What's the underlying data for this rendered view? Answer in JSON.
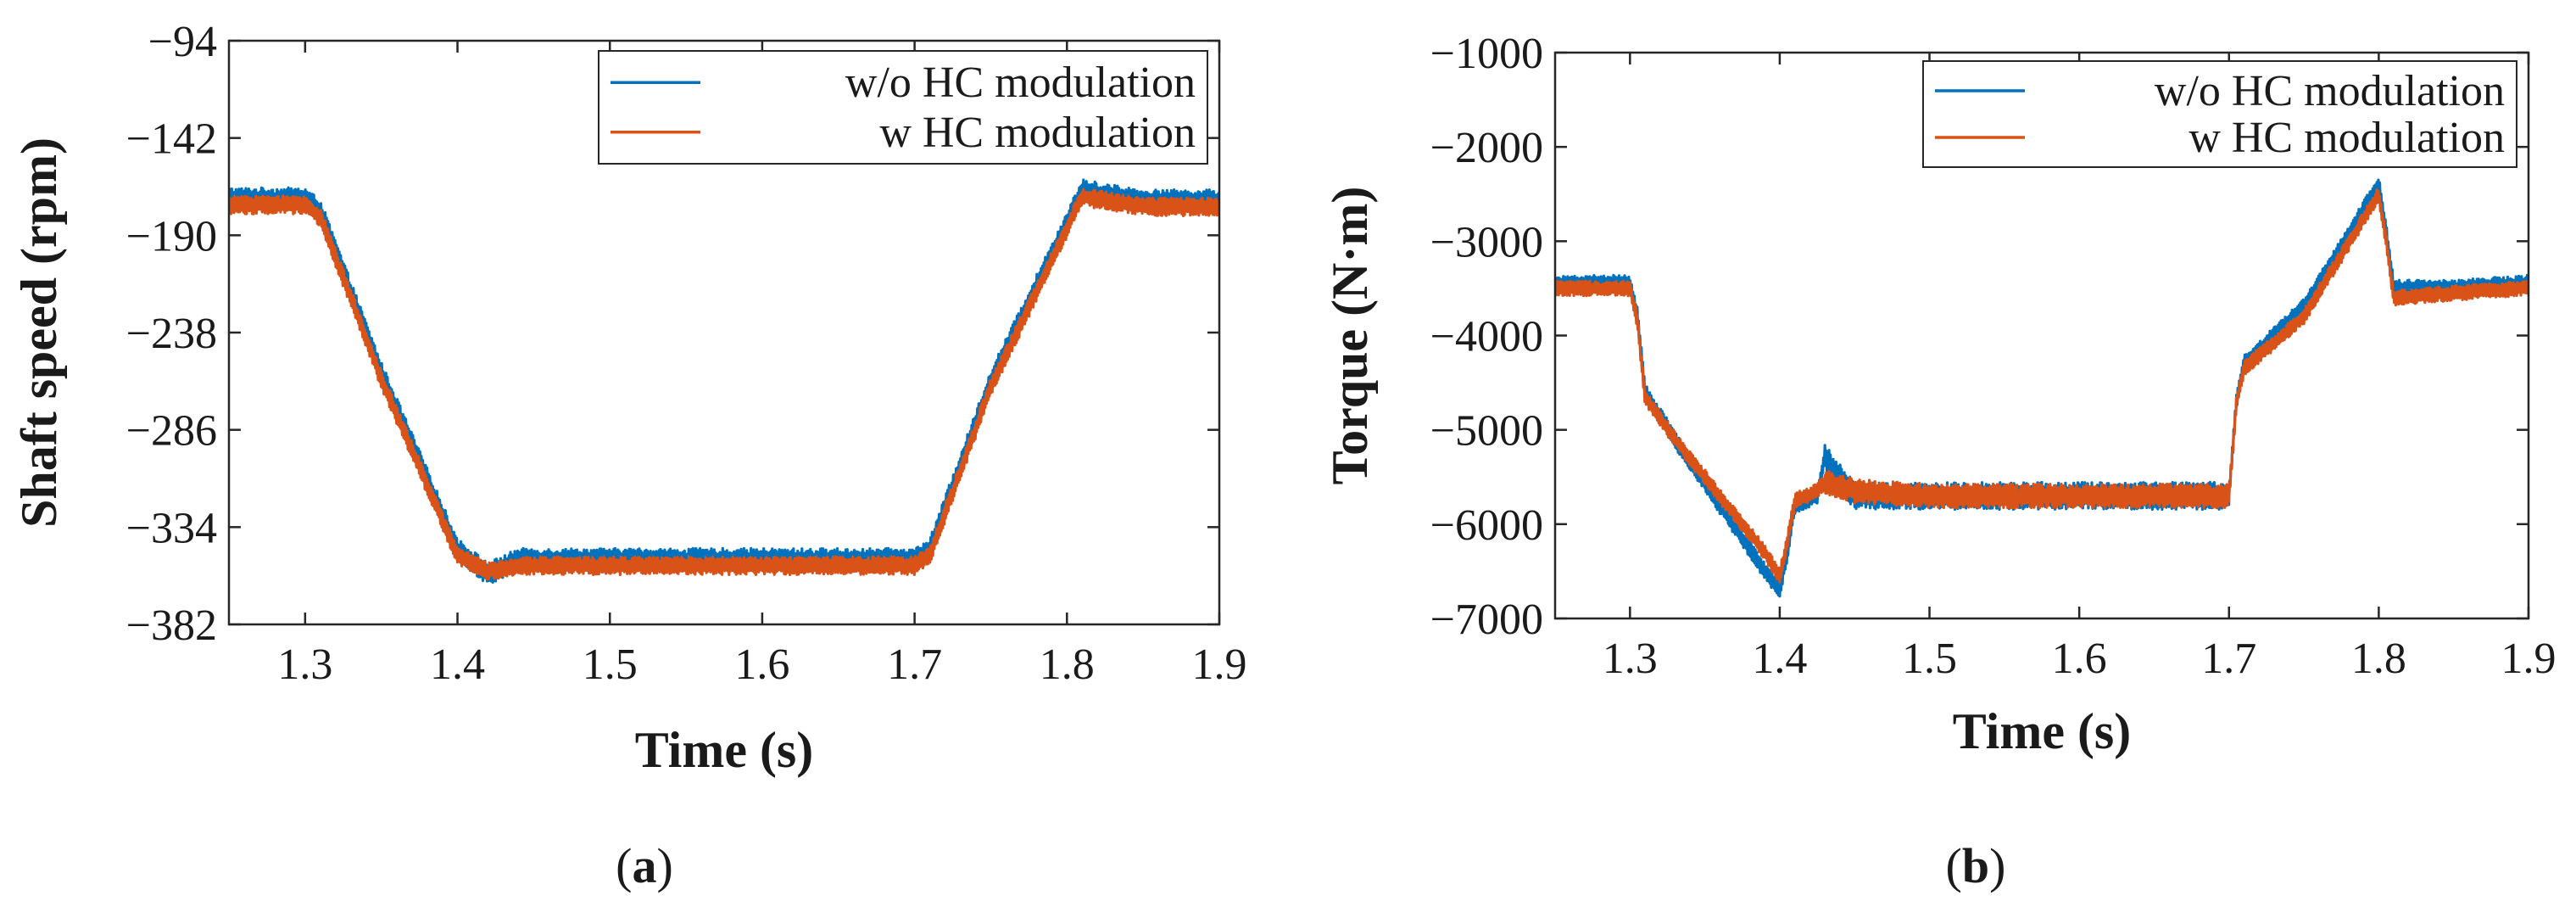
{
  "colors": {
    "series_a": "#0072BD",
    "series_b": "#D95319",
    "axis": "#262626"
  },
  "chart_data": [
    {
      "type": "line",
      "caption": "a",
      "xlabel": "Time (s)",
      "ylabel": "Shaft speed (rpm)",
      "xlim": [
        1.25,
        1.9
      ],
      "ylim": [
        -382,
        -94
      ],
      "xticks": [
        1.3,
        1.4,
        1.5,
        1.6,
        1.7,
        1.8,
        1.9
      ],
      "xtick_labels": [
        "1.3",
        "1.4",
        "1.5",
        "1.6",
        "1.7",
        "1.8",
        "1.9"
      ],
      "yticks": [
        -94,
        -142,
        -190,
        -238,
        -286,
        -334,
        -382
      ],
      "ytick_labels": [
        "−94",
        "−142",
        "−190",
        "−238",
        "−286",
        "−334",
        "−382"
      ],
      "legend": {
        "placement": "top-right",
        "entries": [
          "w/o HC modulation",
          "w HC modulation"
        ]
      },
      "series": [
        {
          "name": "w/o HC modulation",
          "x": [
            1.25,
            1.3,
            1.31,
            1.35,
            1.4,
            1.42,
            1.44,
            1.5,
            1.6,
            1.7,
            1.71,
            1.75,
            1.81,
            1.85,
            1.9
          ],
          "values": [
            -172,
            -172,
            -178,
            -258,
            -345,
            -357,
            -350,
            -350,
            -350,
            -350,
            -345,
            -262,
            -168,
            -173,
            -173
          ]
        },
        {
          "name": "w HC modulation",
          "x": [
            1.25,
            1.3,
            1.31,
            1.35,
            1.4,
            1.42,
            1.44,
            1.5,
            1.6,
            1.7,
            1.71,
            1.75,
            1.81,
            1.85,
            1.9
          ],
          "values": [
            -175,
            -175,
            -181,
            -261,
            -348,
            -356,
            -353,
            -353,
            -353,
            -353,
            -348,
            -265,
            -171,
            -176,
            -176
          ]
        }
      ]
    },
    {
      "type": "line",
      "caption": "b",
      "xlabel": "Time (s)",
      "ylabel": "Torque (N·m)",
      "xlim": [
        1.25,
        1.9
      ],
      "ylim": [
        -7000,
        -1000
      ],
      "xticks": [
        1.3,
        1.4,
        1.5,
        1.6,
        1.7,
        1.8,
        1.9
      ],
      "xtick_labels": [
        "1.3",
        "1.4",
        "1.5",
        "1.6",
        "1.7",
        "1.8",
        "1.9"
      ],
      "yticks": [
        -1000,
        -2000,
        -3000,
        -4000,
        -5000,
        -6000,
        -7000
      ],
      "ytick_labels": [
        "−1000",
        "−2000",
        "−3000",
        "−4000",
        "−5000",
        "−6000",
        "−7000"
      ],
      "legend": {
        "placement": "top-right",
        "entries": [
          "w/o HC modulation",
          "w HC modulation"
        ]
      },
      "series": [
        {
          "name": "w/o HC modulation",
          "x": [
            1.25,
            1.3,
            1.305,
            1.31,
            1.33,
            1.36,
            1.39,
            1.4,
            1.405,
            1.41,
            1.425,
            1.43,
            1.45,
            1.5,
            1.6,
            1.7,
            1.705,
            1.71,
            1.75,
            1.8,
            1.805,
            1.81,
            1.85,
            1.9
          ],
          "values": [
            -3450,
            -3450,
            -3800,
            -4600,
            -5100,
            -5800,
            -6500,
            -6700,
            -6300,
            -5800,
            -5700,
            -5300,
            -5700,
            -5700,
            -5700,
            -5700,
            -4700,
            -4300,
            -3700,
            -2400,
            -2900,
            -3500,
            -3500,
            -3450
          ]
        },
        {
          "name": "w HC modulation",
          "x": [
            1.25,
            1.3,
            1.305,
            1.31,
            1.33,
            1.36,
            1.39,
            1.4,
            1.405,
            1.41,
            1.425,
            1.43,
            1.45,
            1.5,
            1.6,
            1.7,
            1.705,
            1.71,
            1.75,
            1.8,
            1.805,
            1.81,
            1.85,
            1.9
          ],
          "values": [
            -3500,
            -3500,
            -3850,
            -4650,
            -5100,
            -5700,
            -6300,
            -6550,
            -6200,
            -5750,
            -5650,
            -5550,
            -5650,
            -5700,
            -5700,
            -5700,
            -4700,
            -4350,
            -3800,
            -2500,
            -3000,
            -3600,
            -3550,
            -3500
          ]
        }
      ]
    }
  ]
}
